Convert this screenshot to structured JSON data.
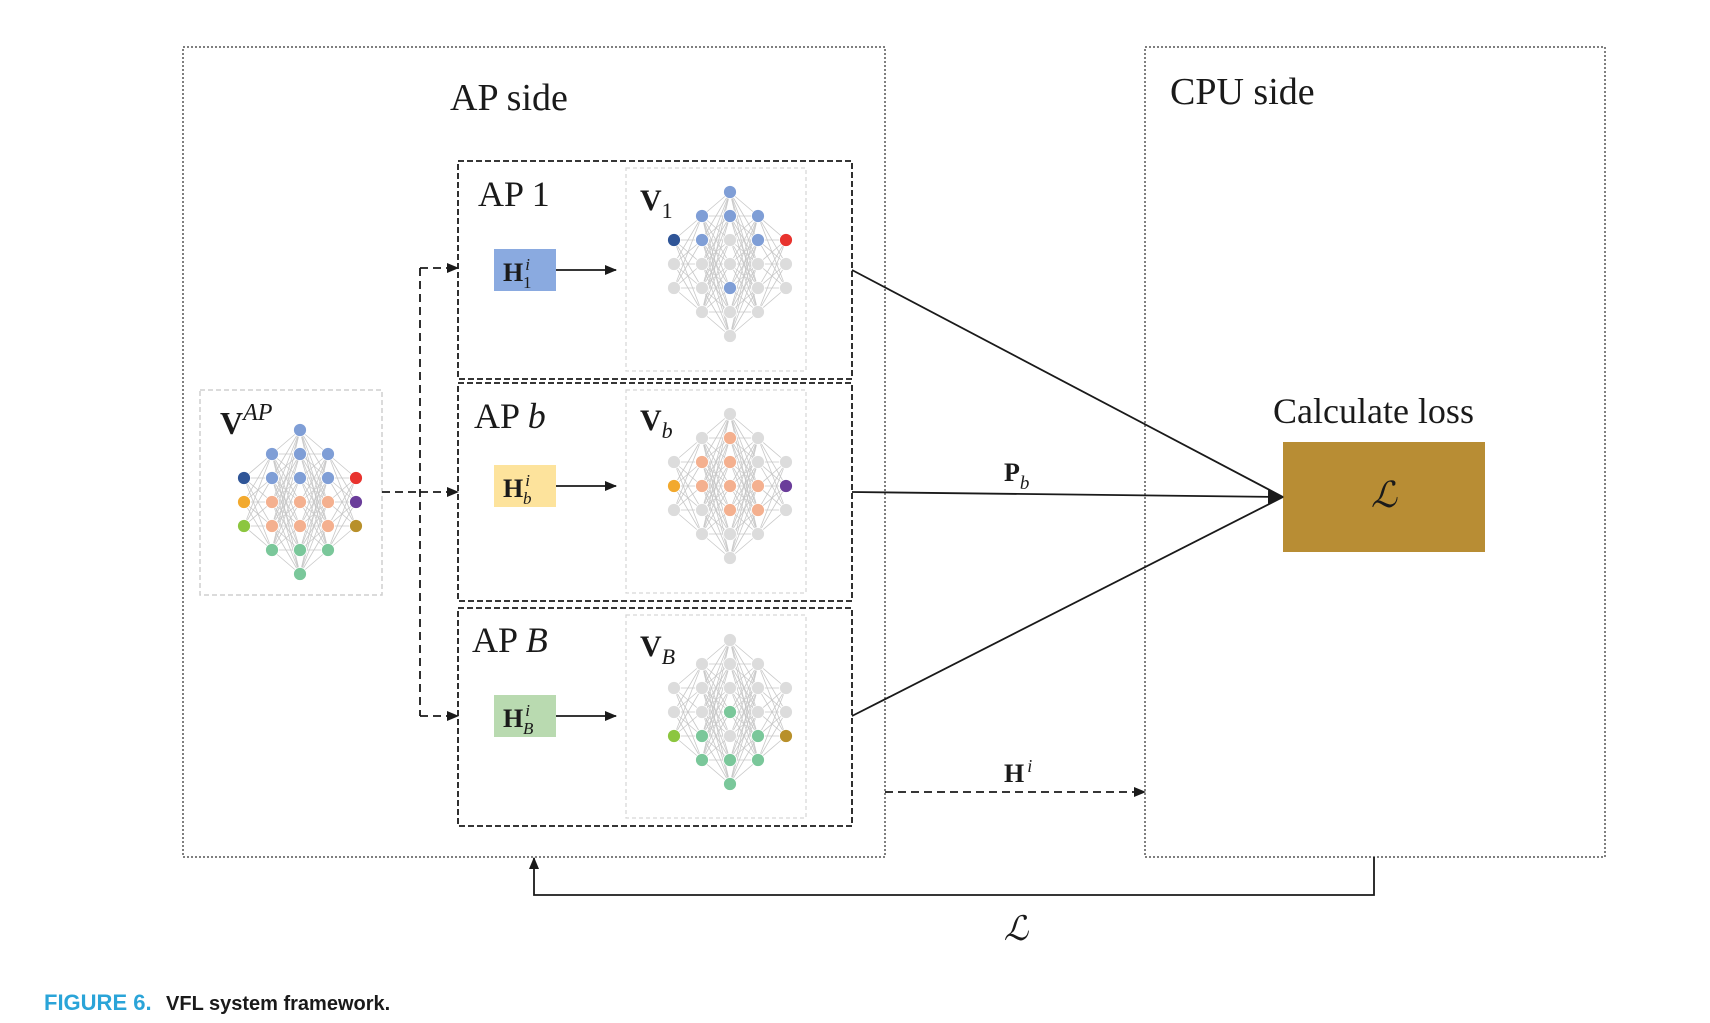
{
  "ap_side": {
    "title": "AP side"
  },
  "cpu_side": {
    "title": "CPU side"
  },
  "global_model": {
    "label": "V",
    "sup": "AP"
  },
  "aps": [
    {
      "title": "AP ",
      "title_var": "",
      "title_num": "1",
      "h_label": "H",
      "h_sub": "1",
      "h_sup": "i",
      "h_color": "#8aaae0",
      "model_label": "V",
      "model_sub": "1",
      "out_color": "#e8332e"
    },
    {
      "title": "AP ",
      "title_var": "b",
      "title_num": "",
      "h_label": "H",
      "h_sub": "b",
      "h_sup": "i",
      "h_color": "#fde39c",
      "model_label": "V",
      "model_sub": "b",
      "out_color": "#6a3d9a"
    },
    {
      "title": "AP ",
      "title_var": "B",
      "title_num": "",
      "h_label": "H",
      "h_sub": "B",
      "h_sup": "i",
      "h_color": "#b9dab0",
      "model_label": "V",
      "model_sub": "B",
      "out_color": "#b8902b"
    }
  ],
  "loss": {
    "title": "Calculate loss",
    "symbol": "ℒ",
    "color": "#b88d34"
  },
  "arrows": {
    "p_label": "P",
    "p_sub": "b",
    "h_label": "H",
    "h_sup": "i",
    "loss_feedback": "ℒ"
  },
  "colors": {
    "blue": "#7f9ed6",
    "blue_dark": "#2f5597",
    "orange": "#f4b08f",
    "orange_input": "#f2a92e",
    "green": "#7ac79a",
    "green_input": "#8cc63f",
    "gray": "#dcdcdc",
    "edge": "#c8c8c8"
  },
  "caption": {
    "label": "FIGURE 6.",
    "text": "VFL system framework."
  }
}
